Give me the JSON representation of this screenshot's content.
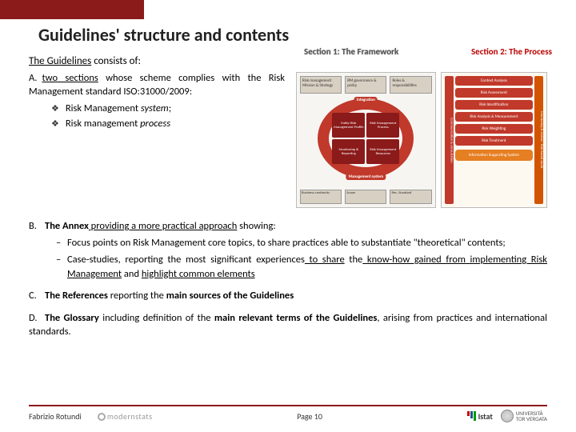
{
  "title": "Guidelines' structure and contents",
  "section1_label": "Section 1: The Framework",
  "section2_label": "Section 2: The Process",
  "intro_pre": "The Guidelines",
  "intro_post": " consists of:",
  "a_label": "A.",
  "a_text_pre": "two sections",
  "a_text_post": " whose scheme complies with the Risk Management standard ISO:31000/2009:",
  "a_sub1_pre": "Risk Management ",
  "a_sub1_em": "system",
  "a_sub1_post": ";",
  "a_sub2_pre": "Risk management ",
  "a_sub2_em": "process",
  "b_label": "B.",
  "b_bold": "The Annex",
  "b_u": " providing a more practical approach",
  "b_post": " showing:",
  "b_d1_pre": "Focus points on Risk Management core topics,",
  "b_d1_post": " to share practices able to substantiate \"theoretical\" contents;",
  "b_d2_pre": "Case-studies, reporting the most significant experiences",
  "b_d2_u1": " to share",
  "b_d2_mid": " the",
  "b_d2_u2": " know-how gained from implementing Risk Management",
  "b_d2_post": " and ",
  "b_d2_u3": "highlight common elements",
  "c_label": "C.",
  "c_bold": "The References",
  "c_post": " reporting the ",
  "c_bold2": "main sources of the Guidelines",
  "d_label": "D.",
  "d_bold": "The Glossary",
  "d_post": " including definition of the ",
  "d_bold2": "main relevant terms of the Guidelines",
  "d_post2": ", arising from practices and international standards.",
  "fw": {
    "top1": "Risk management Mission & Strategy",
    "top2": "RM governance & policy",
    "top3": "Roles & responsibilities",
    "ring_top": "Integration",
    "ring_bot": "Management system",
    "c1": "Entity Risk Management Profile",
    "c2": "Risk Management Process",
    "c3": "Monitoring & Reporting",
    "c4": "Risk Management Resources",
    "bot1": "Business continuity",
    "bot2": "Scope",
    "bot3": "Res. Standard"
  },
  "proc": {
    "v_left": "Communication & consultation",
    "v_right": "Monitoring & review · Risk-based Audit",
    "s1": "Context Analysis",
    "s2": "Risk Assessment",
    "s3": "Risk Identification",
    "s4": "Risk Analysis & Measurement",
    "s5": "Risk Weighting",
    "s6": "Risk Treatment",
    "iss": "Information Supporting System"
  },
  "footer": {
    "author": "Fabrizio Rotundi",
    "page": "Page 10",
    "modernstats": "modernstats",
    "istat": "Istat",
    "uni": "UNIVERSITÀ\nTOR VERGATA"
  },
  "colors": {
    "brand": "#8b1a1a",
    "accent_red": "#c0392b",
    "accent_orange": "#e67e22"
  }
}
